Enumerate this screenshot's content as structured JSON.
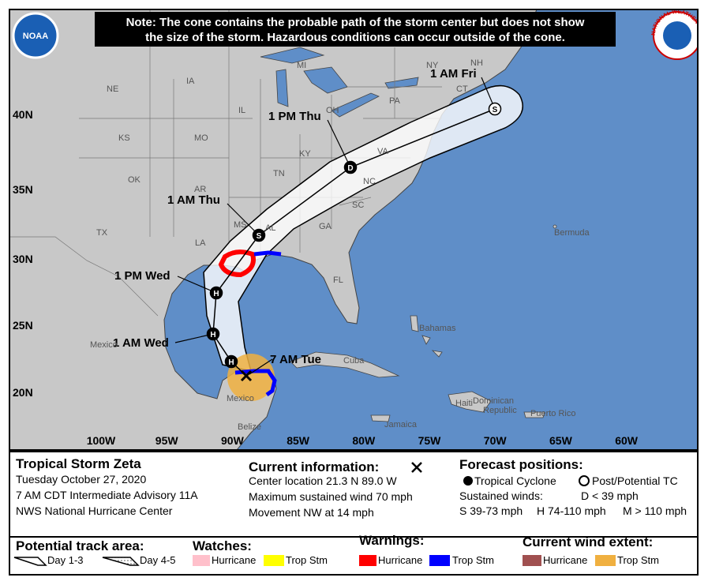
{
  "note": [
    "Note: The cone contains the probable path of the storm center but does not show",
    "the size of the storm. Hazardous conditions can occur outside of the cone."
  ],
  "logos": {
    "noaa": "NOAA",
    "nws": "NATIONAL WEATHER SERVICE"
  },
  "forecast_points": [
    {
      "label": "1 AM Fri",
      "symbol": "S"
    },
    {
      "label": "1 PM Thu",
      "symbol": "D"
    },
    {
      "label": "1 AM Thu",
      "symbol": "S"
    },
    {
      "label": "1 PM Wed",
      "symbol": "H"
    },
    {
      "label": "1 AM Wed",
      "symbol": "H"
    },
    {
      "symbol": "H"
    }
  ],
  "current_label": "7 AM Tue",
  "latitude_labels": [
    "40N",
    "35N",
    "30N",
    "25N",
    "20N"
  ],
  "longitude_labels": [
    "100W",
    "95W",
    "90W",
    "85W",
    "80W",
    "75W",
    "70W",
    "65W",
    "60W"
  ],
  "places": [
    "NE",
    "IA",
    "MI",
    "NY",
    "NH",
    "CT",
    "KS",
    "MO",
    "IL",
    "OH",
    "PA",
    "KY",
    "VA",
    "OK",
    "AR",
    "TN",
    "NC",
    "SC",
    "MS",
    "AL",
    "GA",
    "TX",
    "LA",
    "FL",
    "Bermuda",
    "Mexico",
    "Mexico",
    "Bahamas",
    "Cuba",
    "Jamaica",
    "Haiti",
    "Dominican",
    "Republic",
    "Puerto Rico",
    "Belize"
  ],
  "info_panel": {
    "storm": "Tropical Storm Zeta",
    "date": "Tuesday October 27, 2020",
    "advisory": "7 AM CDT Intermediate Advisory 11A",
    "center": "NWS National Hurricane Center",
    "current_heading": "Current information:",
    "current_lines": [
      "Center location 21.3 N 89.0 W",
      "Maximum sustained wind 70 mph",
      "Movement NW at 14 mph"
    ],
    "forecast_heading": "Forecast positions:",
    "tropical_cyclone": "Tropical Cyclone",
    "post_tc": "Post/Potential TC",
    "sustained": "Sustained winds:",
    "d_range": "D < 39 mph",
    "s_range": "S 39-73 mph",
    "h_range": "H 74-110 mph",
    "m_range": "M > 110 mph"
  },
  "legend": {
    "track_heading": "Potential track area:",
    "day13": "Day 1-3",
    "day45": "Day 4-5",
    "watches_heading": "Watches:",
    "watch_hurricane": "Hurricane",
    "watch_tropstm": "Trop Stm",
    "warnings_heading": "Warnings:",
    "warn_hurricane": "Hurricane",
    "warn_tropstm": "Trop Stm",
    "wind_heading": "Current wind extent:",
    "wind_hurricane": "Hurricane",
    "wind_tropstm": "Trop Stm"
  }
}
